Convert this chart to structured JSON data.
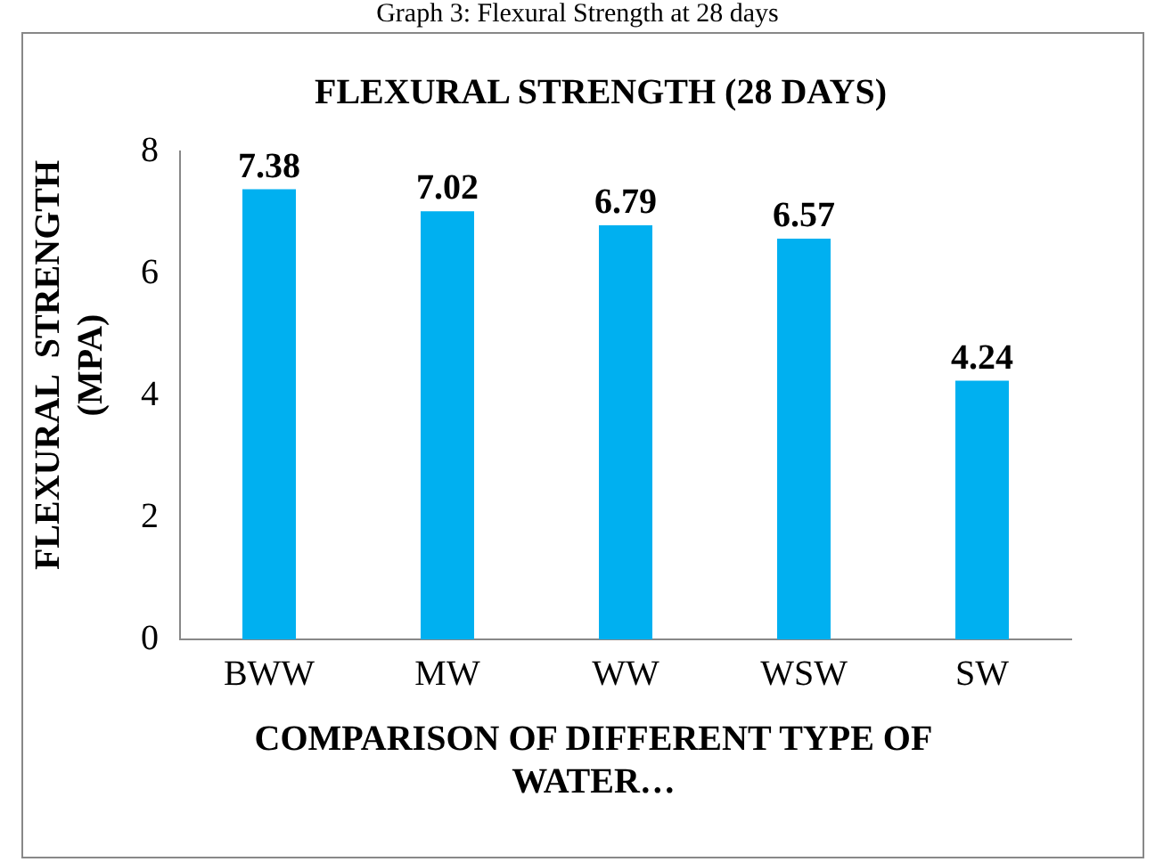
{
  "chart_data": {
    "type": "bar",
    "title": "FLEXURAL STRENGTH (28 DAYS)",
    "xlabel": "COMPARISON OF DIFFERENT TYPE OF WATER…",
    "ylabel": "FLEXURAL  STRENGTH (MPA)",
    "annotations": [
      "Graph 3: Flexural Strength at 28 days"
    ],
    "categories": [
      "BWW",
      "MW",
      "WW",
      "WSW",
      "SW"
    ],
    "values": [
      7.38,
      7.02,
      6.79,
      6.57,
      4.24
    ],
    "color": "#00b0f0",
    "ylim": [
      0,
      8
    ],
    "yticks": [
      0,
      2,
      4,
      6,
      8
    ],
    "grid": false,
    "legend": false,
    "data_labels": true
  }
}
